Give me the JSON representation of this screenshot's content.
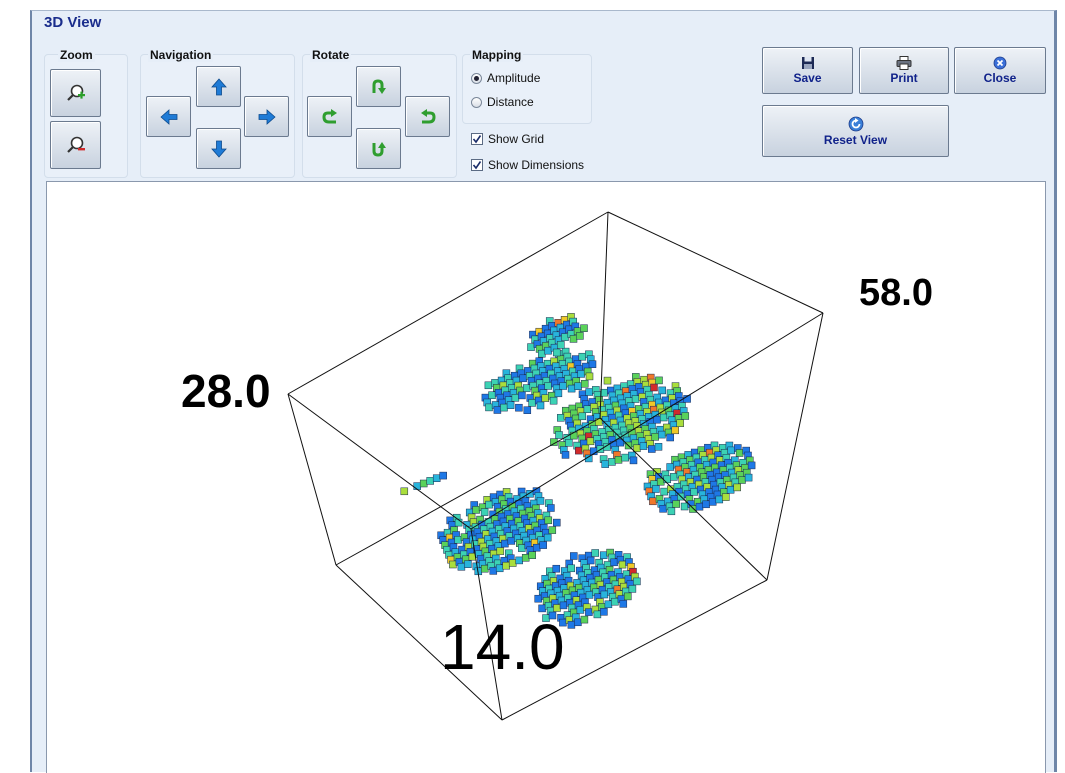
{
  "window": {
    "title": "3D View"
  },
  "zoom": {
    "label": "Zoom",
    "buttons": [
      {
        "icon": "zoom-in-icon"
      },
      {
        "icon": "zoom-out-icon"
      }
    ]
  },
  "navigation": {
    "label": "Navigation",
    "buttons": [
      {
        "icon": "arrow-up-icon"
      },
      {
        "icon": "arrow-left-icon"
      },
      {
        "icon": "arrow-right-icon"
      },
      {
        "icon": "arrow-down-icon"
      }
    ]
  },
  "rotate": {
    "label": "Rotate",
    "buttons": [
      {
        "icon": "rotate-up-icon"
      },
      {
        "icon": "rotate-left-icon"
      },
      {
        "icon": "rotate-right-icon"
      },
      {
        "icon": "rotate-down-icon"
      }
    ]
  },
  "mapping": {
    "label": "Mapping",
    "options": [
      {
        "label": "Amplitude",
        "selected": true
      },
      {
        "label": "Distance",
        "selected": false
      }
    ],
    "checks": [
      {
        "label": "Show Grid",
        "checked": true
      },
      {
        "label": "Show Dimensions",
        "checked": true
      }
    ]
  },
  "actions": {
    "save": "Save",
    "print": "Print",
    "close": "Close",
    "reset": "Reset View"
  },
  "view3d": {
    "dimensions": {
      "depth": "28.0",
      "width": "58.0",
      "height": "14.0"
    },
    "show_grid": true,
    "colormap": [
      "#1e3cc8",
      "#1e78e6",
      "#28b4dc",
      "#3cd2b4",
      "#5ad25a",
      "#aade3c",
      "#f0c828",
      "#f0782a",
      "#d22a2a"
    ]
  }
}
